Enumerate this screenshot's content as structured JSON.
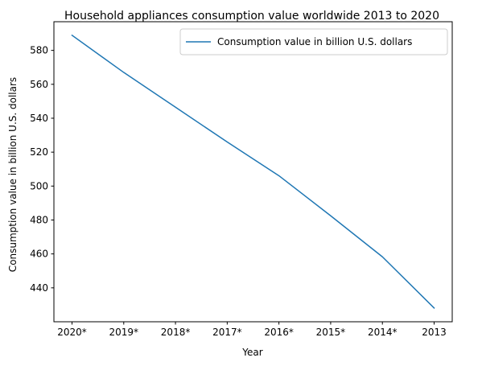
{
  "chart_data": {
    "type": "line",
    "title": "Household appliances consumption value worldwide 2013 to 2020",
    "xlabel": "Year",
    "ylabel": "Consumption value in billion U.S. dollars",
    "categories": [
      "2020*",
      "2019*",
      "2018*",
      "2017*",
      "2016*",
      "2015*",
      "2014*",
      "2013"
    ],
    "series": [
      {
        "name": "Consumption value in billion U.S. dollars",
        "values": [
          588.9,
          567.0,
          546.5,
          526.0,
          506.1,
          482.5,
          458.3,
          428.1
        ],
        "color": "#1f77b4"
      }
    ],
    "yticks": [
      440,
      460,
      480,
      500,
      520,
      540,
      560,
      580
    ],
    "ylim": [
      420.0,
      596.9
    ],
    "grid": false,
    "legend_position": "upper right"
  }
}
